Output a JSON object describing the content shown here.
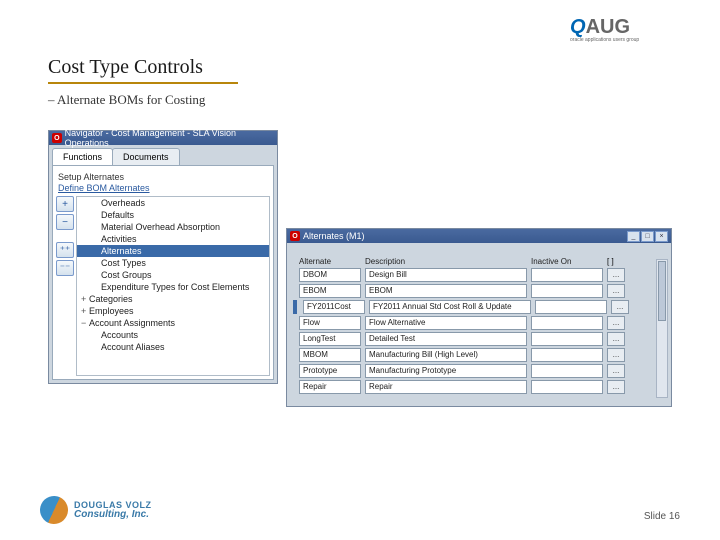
{
  "slide": {
    "title": "Cost Type Controls",
    "subtitle": "– Alternate BOMs for Costing",
    "slide_label": "Slide 16"
  },
  "logos": {
    "oaug_q": "Q",
    "oaug_aug": "AUG",
    "oaug_tagline": "oracle applications users group",
    "douglas_line1": "DOUGLAS VOLZ",
    "douglas_line2": "Consulting, Inc."
  },
  "nav_window": {
    "title": "Navigator - Cost Management - SLA Vision Operations",
    "tabs": {
      "functions": "Functions",
      "documents": "Documents"
    },
    "section_label": "Setup Alternates",
    "link_text": "Define BOM Alternates",
    "buttons": {
      "plus": "+",
      "minus": "−",
      "plus_multi": "⁺⁺",
      "minus_multi": "⁻⁻"
    },
    "tree": [
      {
        "label": "Overheads",
        "lvl": 2
      },
      {
        "label": "Defaults",
        "lvl": 2
      },
      {
        "label": "Material Overhead Absorption",
        "lvl": 2
      },
      {
        "label": "Activities",
        "lvl": 2,
        "exp": "−"
      },
      {
        "label": "Alternates",
        "lvl": 2,
        "selected": true
      },
      {
        "label": "Cost Types",
        "lvl": 2
      },
      {
        "label": "Cost Groups",
        "lvl": 2
      },
      {
        "label": "Expenditure Types for Cost Elements",
        "lvl": 2
      },
      {
        "label": "Categories",
        "lvl": 1,
        "exp": "+"
      },
      {
        "label": "Employees",
        "lvl": 1,
        "exp": "+"
      },
      {
        "label": "Account Assignments",
        "lvl": 1,
        "exp": "−"
      },
      {
        "label": "Accounts",
        "lvl": 2
      },
      {
        "label": "Account Aliases",
        "lvl": 2
      }
    ]
  },
  "alt_window": {
    "title": "Alternates (M1)",
    "headers": {
      "alternate": "Alternate",
      "description": "Description",
      "inactive_on": "Inactive On",
      "end": "[ ]"
    },
    "rows": [
      {
        "alt": "DBOM",
        "desc": "Design Bill",
        "inactive": ""
      },
      {
        "alt": "EBOM",
        "desc": "EBOM",
        "inactive": ""
      },
      {
        "alt": "FY2011Cost",
        "desc": "FY2011 Annual Std Cost Roll & Update",
        "inactive": "",
        "selected": true
      },
      {
        "alt": "Flow",
        "desc": "Flow Alternative",
        "inactive": ""
      },
      {
        "alt": "LongTest",
        "desc": "Detailed Test",
        "inactive": ""
      },
      {
        "alt": "MBOM",
        "desc": "Manufacturing Bill (High Level)",
        "inactive": ""
      },
      {
        "alt": "Prototype",
        "desc": "Manufacturing Prototype",
        "inactive": ""
      },
      {
        "alt": "Repair",
        "desc": "Repair",
        "inactive": ""
      }
    ],
    "controls": {
      "min": "_",
      "max": "□",
      "close": "×"
    }
  },
  "colors": {
    "underline": "#b8860b",
    "titlebar": "#3a5a90",
    "selection": "#3a6aa8"
  }
}
